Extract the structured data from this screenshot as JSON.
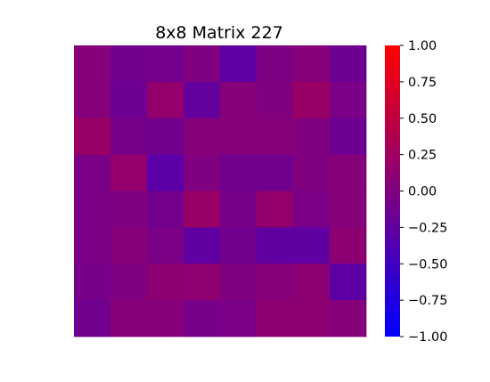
{
  "chart_data": {
    "type": "heatmap",
    "title": "8x8 Matrix 227",
    "xlabel": "",
    "ylabel": "",
    "rows": 8,
    "cols": 8,
    "values": [
      [
        0.05,
        -0.12,
        -0.1,
        0.0,
        -0.28,
        -0.02,
        0.05,
        -0.15
      ],
      [
        0.05,
        -0.15,
        0.15,
        -0.22,
        0.05,
        0.0,
        0.2,
        -0.05
      ],
      [
        0.2,
        -0.08,
        -0.12,
        0.05,
        0.05,
        0.05,
        0.0,
        -0.15
      ],
      [
        -0.05,
        0.15,
        -0.3,
        0.0,
        -0.12,
        -0.12,
        0.0,
        0.05
      ],
      [
        -0.05,
        0.0,
        -0.1,
        0.2,
        -0.08,
        0.15,
        -0.05,
        0.05
      ],
      [
        -0.05,
        0.05,
        -0.05,
        -0.25,
        -0.12,
        -0.25,
        -0.25,
        0.1
      ],
      [
        -0.08,
        0.0,
        0.1,
        0.12,
        0.0,
        0.05,
        0.1,
        -0.28
      ],
      [
        -0.12,
        0.05,
        0.05,
        -0.08,
        -0.05,
        0.1,
        0.1,
        0.05
      ]
    ],
    "vmin": -1.0,
    "vmax": 1.0,
    "colormap": {
      "low": "#0000ff",
      "mid": "#800080",
      "high": "#ff0000"
    },
    "colorbar": {
      "ticks": [
        1.0,
        0.75,
        0.5,
        0.25,
        0.0,
        -0.25,
        -0.5,
        -0.75,
        -1.0
      ],
      "tick_labels": [
        "1.00",
        "0.75",
        "0.50",
        "0.25",
        "0.00",
        "−0.25",
        "−0.50",
        "−0.75",
        "−1.00"
      ]
    },
    "axes_visible": false,
    "grid": false
  }
}
